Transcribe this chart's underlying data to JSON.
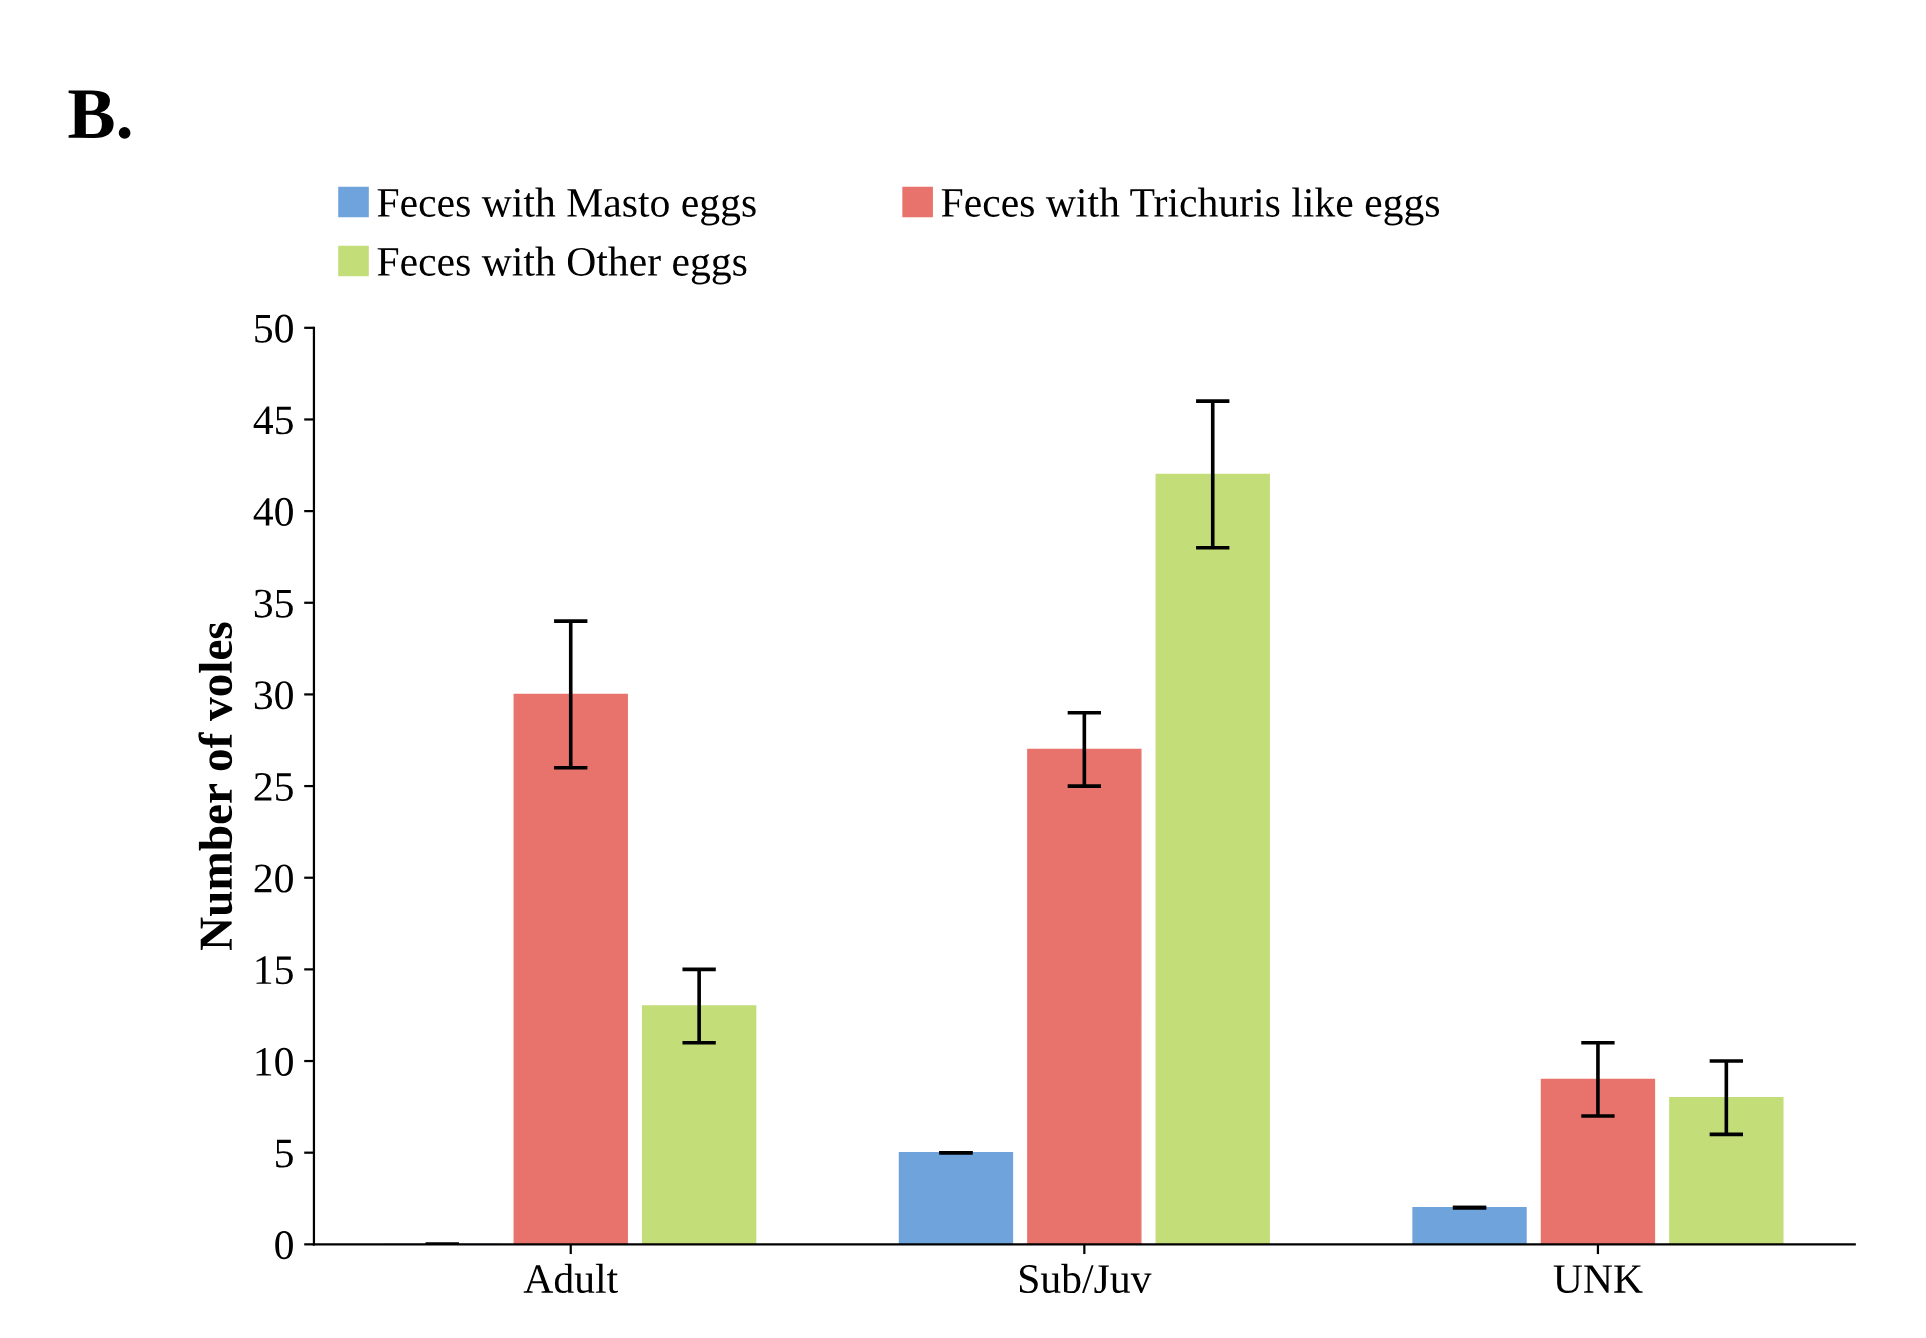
{
  "chart_data": {
    "type": "bar",
    "ylabel": "Number of voles",
    "annotations": [
      "B."
    ],
    "categories": [
      "Adult",
      "Sub/Juv",
      "UNK"
    ],
    "series": [
      {
        "name": "Feces with Masto eggs",
        "color": "#6fa3dc",
        "values": [
          0,
          5,
          2
        ],
        "errors": [
          0,
          0,
          0
        ]
      },
      {
        "name": "Feces with Trichuris like eggs",
        "color": "#e8736c",
        "values": [
          30,
          27,
          9
        ],
        "errors": [
          4,
          2,
          2
        ]
      },
      {
        "name": "Feces with Other eggs",
        "color": "#c3dd78",
        "values": [
          13,
          42,
          8
        ],
        "errors": [
          2,
          4,
          2
        ]
      }
    ],
    "ylim": [
      0,
      50
    ],
    "yticks": [
      0,
      5,
      10,
      15,
      20,
      25,
      30,
      35,
      40,
      45,
      50
    ],
    "grid": false,
    "legend": "top"
  }
}
